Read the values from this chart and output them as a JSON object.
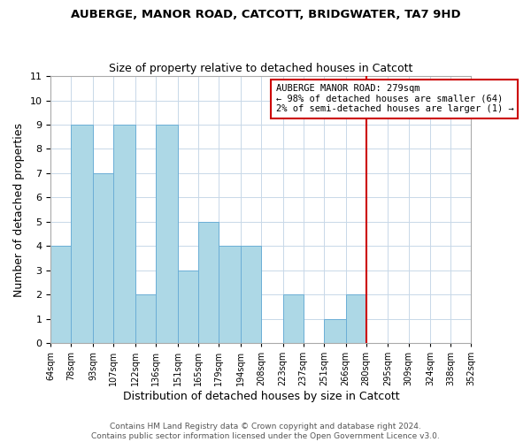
{
  "title": "AUBERGE, MANOR ROAD, CATCOTT, BRIDGWATER, TA7 9HD",
  "subtitle": "Size of property relative to detached houses in Catcott",
  "xlabel": "Distribution of detached houses by size in Catcott",
  "ylabel": "Number of detached properties",
  "bar_color": "#add8e6",
  "bar_edge_color": "#6baed6",
  "background_color": "#ffffff",
  "grid_color": "#c8d8e8",
  "bins": [
    64,
    78,
    93,
    107,
    122,
    136,
    151,
    165,
    179,
    194,
    208,
    223,
    237,
    251,
    266,
    280,
    295,
    309,
    324,
    338,
    352
  ],
  "counts": [
    4,
    9,
    7,
    9,
    2,
    9,
    3,
    5,
    4,
    4,
    0,
    2,
    0,
    1,
    2,
    0,
    0,
    0,
    0,
    0
  ],
  "tick_labels": [
    "64sqm",
    "78sqm",
    "93sqm",
    "107sqm",
    "122sqm",
    "136sqm",
    "151sqm",
    "165sqm",
    "179sqm",
    "194sqm",
    "208sqm",
    "223sqm",
    "237sqm",
    "251sqm",
    "266sqm",
    "280sqm",
    "295sqm",
    "309sqm",
    "324sqm",
    "338sqm",
    "352sqm"
  ],
  "ylim": [
    0,
    11
  ],
  "yticks": [
    0,
    1,
    2,
    3,
    4,
    5,
    6,
    7,
    8,
    9,
    10,
    11
  ],
  "vline_x": 280,
  "vline_color": "#cc0000",
  "annotation_line1": "AUBERGE MANOR ROAD: 279sqm",
  "annotation_line2": "← 98% of detached houses are smaller (64)",
  "annotation_line3": "2% of semi-detached houses are larger (1) →",
  "footer_line1": "Contains HM Land Registry data © Crown copyright and database right 2024.",
  "footer_line2": "Contains public sector information licensed under the Open Government Licence v3.0."
}
